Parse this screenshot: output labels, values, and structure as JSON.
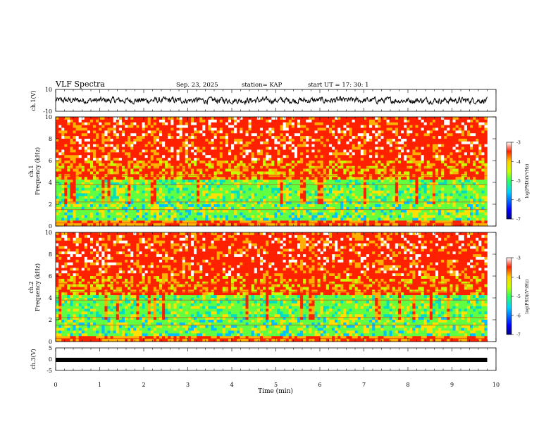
{
  "header": {
    "title": "VLF Spectra",
    "date": "Sep. 23, 2025",
    "station": "station= KAP",
    "start_time": "start  UT  =   17: 30: 1"
  },
  "chart_data": [
    {
      "type": "line",
      "name": "ch1-waveform",
      "ylabel": "ch.1(V)",
      "ylim": [
        -10,
        10
      ],
      "y_tick_labels": [
        "10",
        "-10"
      ],
      "xlim": [
        0,
        10
      ],
      "signal_range": [
        -3.5,
        3.5
      ]
    },
    {
      "type": "heatmap",
      "name": "ch1-spectrogram",
      "ylabel": "ch.1\nFrequency  (kHz)",
      "ylim": [
        0,
        10
      ],
      "y_tick_labels": [
        "0",
        "2",
        "4",
        "6",
        "8",
        "10"
      ],
      "x_data_end": 9.8,
      "colorbar": {
        "label": "log(PSD)(V²/Hz)",
        "range": [
          -7,
          -3
        ],
        "tick_labels": [
          "-3",
          "-4",
          "-5",
          "-6",
          "-7"
        ]
      }
    },
    {
      "type": "heatmap",
      "name": "ch2-spectrogram",
      "ylabel": "ch.2\nFrequency  (kHz)",
      "ylim": [
        0,
        10
      ],
      "y_tick_labels": [
        "0",
        "2",
        "4",
        "6",
        "8",
        "10"
      ],
      "x_data_end": 9.8,
      "colorbar": {
        "label": "log(PSD)(V²/Hz)",
        "range": [
          -7,
          -3
        ],
        "tick_labels": [
          "-3",
          "-4",
          "-5",
          "-6",
          "-7"
        ]
      }
    },
    {
      "type": "line",
      "name": "ch3-waveform",
      "ylabel": "ch.3(V)",
      "ylim": [
        -5,
        5
      ],
      "y_tick_labels": [
        "5",
        "0",
        "-5"
      ],
      "xlim": [
        0,
        10
      ],
      "constant_value": 0,
      "x_data_end": 9.8
    }
  ],
  "x_axis": {
    "label": "Time  (min)",
    "range": [
      0,
      10
    ],
    "tick_labels": [
      "0",
      "1",
      "2",
      "3",
      "4",
      "5",
      "6",
      "7",
      "8",
      "9",
      "10"
    ]
  },
  "colors": {
    "waveform": "#000000",
    "axes": "#000000"
  }
}
